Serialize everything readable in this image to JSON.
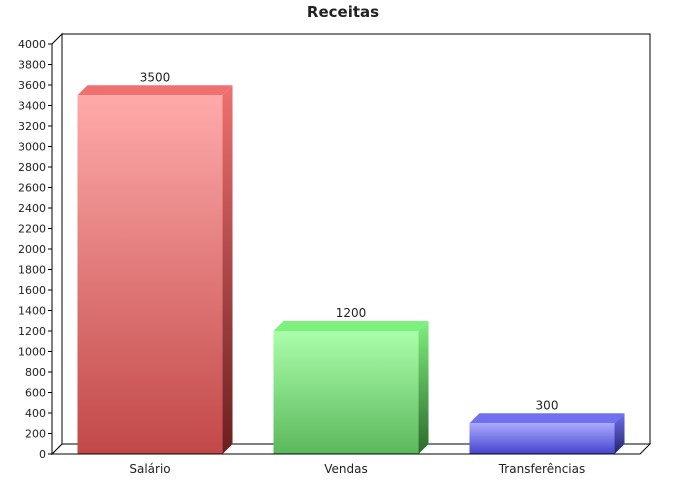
{
  "chart_data": {
    "type": "bar",
    "title": "Receitas",
    "xlabel": "",
    "ylabel": "",
    "categories": [
      "Salário",
      "Vendas",
      "Transferências"
    ],
    "values": [
      3500,
      1200,
      300
    ],
    "data_labels": [
      "3500",
      "1200",
      "300"
    ],
    "ylim": [
      0,
      4000
    ],
    "yticks": [
      0,
      200,
      400,
      600,
      800,
      1000,
      1200,
      1400,
      1600,
      1800,
      2000,
      2200,
      2400,
      2600,
      2800,
      3000,
      3200,
      3400,
      3600,
      3800,
      4000
    ],
    "grid": false,
    "legend": "none",
    "style": "3d",
    "colors": [
      {
        "light": "#ffaaaa",
        "dark": "#c24848",
        "top": "#f07070",
        "side": "#6a1f1f"
      },
      {
        "light": "#aaffaa",
        "dark": "#5cb85c",
        "top": "#7ef07e",
        "side": "#2a6a2a"
      },
      {
        "light": "#aaaaff",
        "dark": "#4444cc",
        "top": "#7070f0",
        "side": "#22226a"
      }
    ]
  }
}
